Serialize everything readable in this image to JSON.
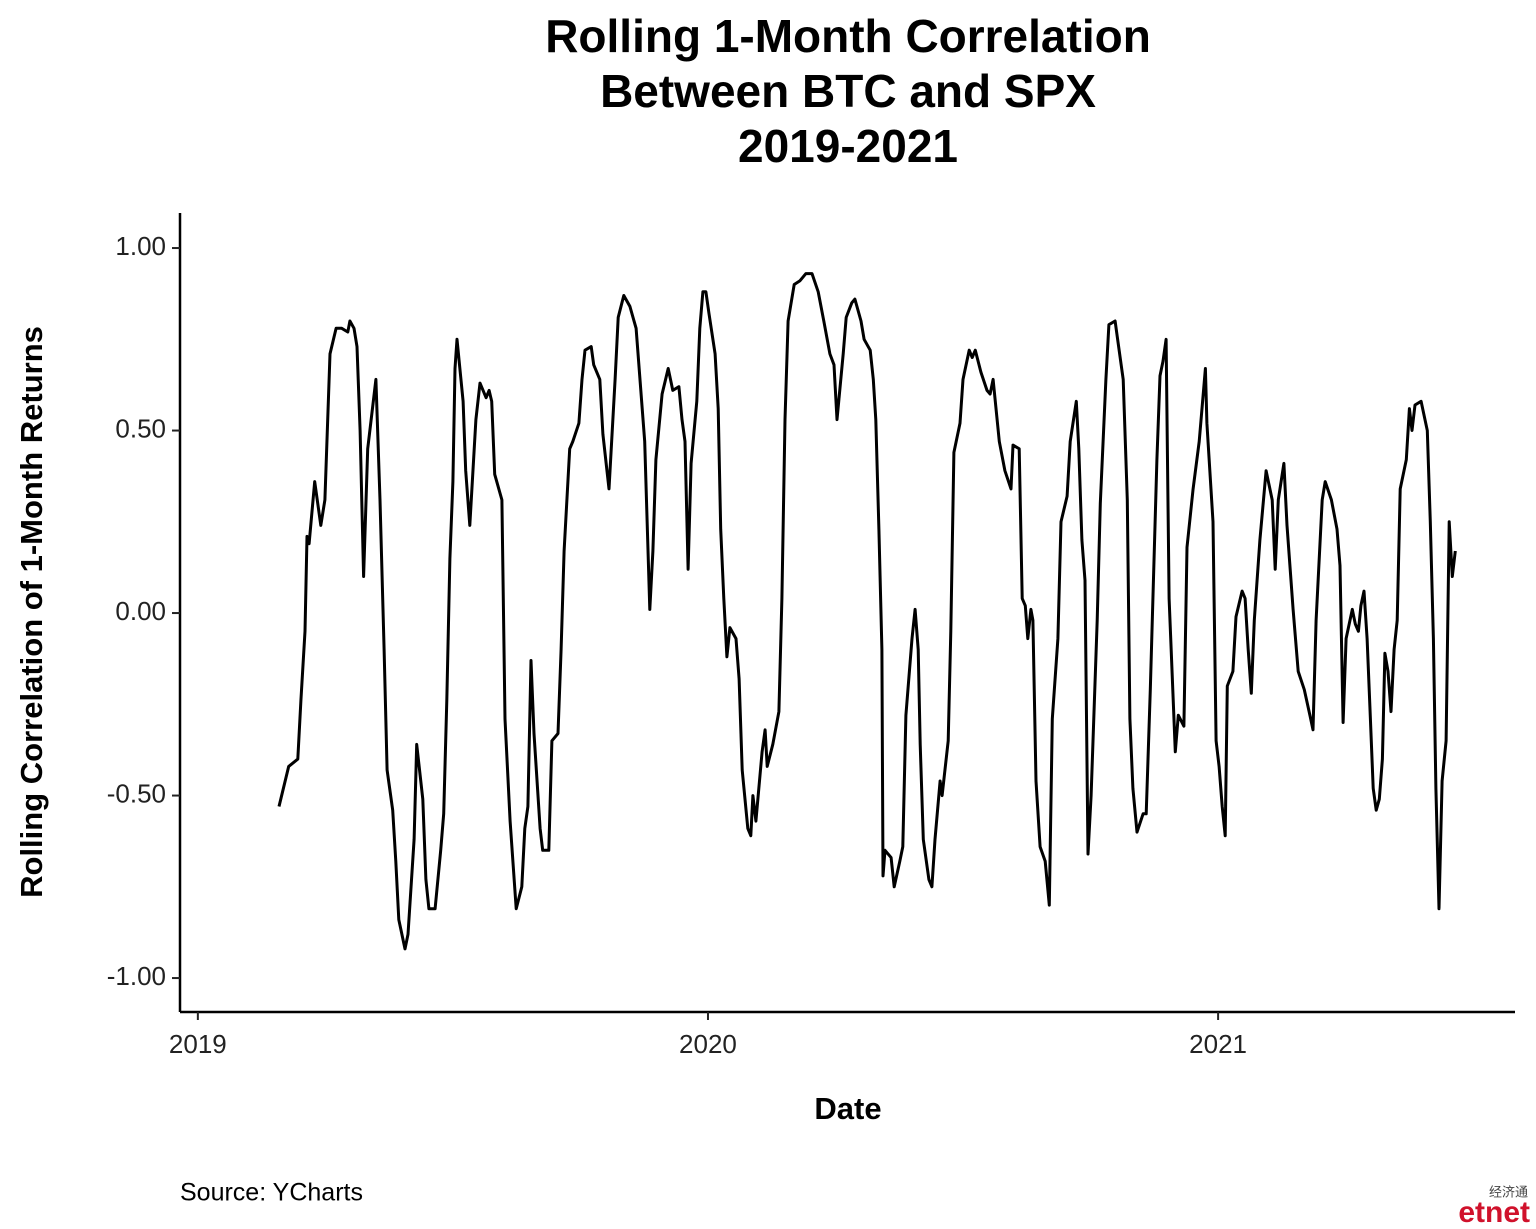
{
  "chart_data": {
    "type": "line",
    "title": [
      "Rolling 1-Month Correlation",
      "Between BTC and SPX",
      "2019-2021"
    ],
    "x_label": "Date",
    "y_label": "Rolling Correlation of 1-Month Returns",
    "source": "Source:  YCharts",
    "watermark": [
      "经济通",
      "etnet"
    ],
    "xlim": [
      2018.965,
      2021.582
    ],
    "xticks": [
      2019,
      2020,
      2021
    ],
    "ylim": [
      -1.093,
      1.096
    ],
    "yticks": [
      {
        "value": 1,
        "label": "1.00"
      },
      {
        "value": 0.5,
        "label": "0.50"
      },
      {
        "value": 0,
        "label": "0.00"
      },
      {
        "value": -0.5,
        "label": "-0.50"
      },
      {
        "value": -1,
        "label": "-1.00"
      }
    ],
    "grid": false,
    "series": [
      {
        "color": "#000000",
        "x": [
          2019.159,
          2019.178,
          2019.196,
          2019.202,
          2019.21,
          2019.214,
          2019.218,
          2019.229,
          2019.241,
          2019.249,
          2019.259,
          2019.271,
          2019.282,
          2019.294,
          2019.298,
          2019.306,
          2019.312,
          2019.318,
          2019.325,
          2019.333,
          2019.349,
          2019.357,
          2019.365,
          2019.371,
          2019.382,
          2019.388,
          2019.394,
          2019.406,
          2019.412,
          2019.424,
          2019.429,
          2019.441,
          2019.447,
          2019.453,
          2019.465,
          2019.476,
          2019.482,
          2019.488,
          2019.494,
          2019.5,
          2019.504,
          2019.508,
          2019.52,
          2019.525,
          2019.533,
          2019.545,
          2019.553,
          2019.565,
          2019.571,
          2019.576,
          2019.582,
          2019.596,
          2019.602,
          2019.612,
          2019.624,
          2019.635,
          2019.641,
          2019.647,
          2019.653,
          2019.659,
          2019.671,
          2019.676,
          2019.688,
          2019.694,
          2019.706,
          2019.712,
          2019.718,
          2019.729,
          2019.735,
          2019.747,
          2019.753,
          2019.759,
          2019.771,
          2019.776,
          2019.788,
          2019.794,
          2019.806,
          2019.818,
          2019.824,
          2019.835,
          2019.847,
          2019.859,
          2019.871,
          2019.876,
          2019.886,
          2019.892,
          2019.898,
          2019.91,
          2019.922,
          2019.931,
          2019.943,
          2019.949,
          2019.955,
          2019.961,
          2019.967,
          2019.978,
          2019.984,
          2019.99,
          2019.996,
          2020.002,
          2020.014,
          2020.02,
          2020.025,
          2020.031,
          2020.037,
          2020.043,
          2020.055,
          2020.061,
          2020.067,
          2020.078,
          2020.084,
          2020.088,
          2020.094,
          2020.106,
          2020.112,
          2020.116,
          2020.127,
          2020.139,
          2020.145,
          2020.151,
          2020.157,
          2020.169,
          2020.18,
          2020.192,
          2020.204,
          2020.216,
          2020.227,
          2020.239,
          2020.247,
          2020.253,
          2020.265,
          2020.271,
          2020.282,
          2020.288,
          2020.3,
          2020.306,
          2020.318,
          2020.324,
          2020.329,
          2020.335,
          2020.341,
          2020.343,
          2020.347,
          2020.359,
          2020.365,
          2020.376,
          2020.382,
          2020.388,
          2020.4,
          2020.406,
          2020.412,
          2020.416,
          2020.422,
          2020.433,
          2020.439,
          2020.445,
          2020.455,
          2020.459,
          2020.471,
          2020.476,
          2020.482,
          2020.494,
          2020.5,
          2020.512,
          2020.518,
          2020.524,
          2020.535,
          2020.547,
          2020.553,
          2020.559,
          2020.571,
          2020.582,
          2020.594,
          2020.598,
          2020.61,
          2020.616,
          2020.622,
          2020.627,
          2020.633,
          2020.637,
          2020.643,
          2020.651,
          2020.661,
          2020.669,
          2020.675,
          2020.686,
          2020.692,
          2020.704,
          2020.71,
          2020.722,
          2020.727,
          2020.733,
          2020.739,
          2020.745,
          2020.751,
          2020.763,
          2020.769,
          2020.78,
          2020.786,
          2020.798,
          2020.802,
          2020.814,
          2020.822,
          2020.827,
          2020.833,
          2020.841,
          2020.853,
          2020.859,
          2020.867,
          2020.88,
          2020.886,
          2020.892,
          2020.898,
          2020.904,
          2020.916,
          2020.922,
          2020.933,
          2020.939,
          2020.951,
          2020.963,
          2020.975,
          2020.978,
          2020.99,
          2020.996,
          2021.002,
          2021.008,
          2021.014,
          2021.018,
          2021.029,
          2021.035,
          2021.047,
          2021.053,
          2021.059,
          2021.065,
          2021.071,
          2021.082,
          2021.094,
          2021.106,
          2021.112,
          2021.118,
          2021.129,
          2021.135,
          2021.147,
          2021.157,
          2021.169,
          2021.18,
          2021.186,
          2021.192,
          2021.204,
          2021.21,
          2021.222,
          2021.233,
          2021.239,
          2021.245,
          2021.251,
          2021.263,
          2021.269,
          2021.275,
          2021.28,
          2021.286,
          2021.292,
          2021.298,
          2021.304,
          2021.31,
          2021.316,
          2021.322,
          2021.327,
          2021.333,
          2021.339,
          2021.345,
          2021.351,
          2021.357,
          2021.369,
          2021.375,
          2021.38,
          2021.386,
          2021.398,
          2021.404,
          2021.41,
          2021.416,
          2021.422,
          2021.427,
          2021.433,
          2021.439,
          2021.447,
          2021.453,
          2021.459,
          2021.465
        ],
        "values": [
          -0.53,
          -0.42,
          -0.4,
          -0.24,
          -0.05,
          0.21,
          0.19,
          0.36,
          0.24,
          0.31,
          0.71,
          0.78,
          0.78,
          0.77,
          0.8,
          0.78,
          0.73,
          0.5,
          0.1,
          0.45,
          0.64,
          0.31,
          -0.1,
          -0.43,
          -0.54,
          -0.68,
          -0.84,
          -0.92,
          -0.88,
          -0.62,
          -0.36,
          -0.51,
          -0.73,
          -0.81,
          -0.81,
          -0.65,
          -0.55,
          -0.24,
          0.15,
          0.36,
          0.67,
          0.75,
          0.58,
          0.39,
          0.24,
          0.53,
          0.63,
          0.59,
          0.61,
          0.58,
          0.38,
          0.31,
          -0.29,
          -0.57,
          -0.81,
          -0.75,
          -0.59,
          -0.53,
          -0.13,
          -0.33,
          -0.59,
          -0.65,
          -0.65,
          -0.35,
          -0.33,
          -0.1,
          0.17,
          0.45,
          0.47,
          0.52,
          0.64,
          0.72,
          0.73,
          0.68,
          0.64,
          0.49,
          0.34,
          0.64,
          0.81,
          0.87,
          0.84,
          0.78,
          0.56,
          0.47,
          0.01,
          0.17,
          0.42,
          0.6,
          0.67,
          0.61,
          0.62,
          0.53,
          0.47,
          0.12,
          0.41,
          0.58,
          0.78,
          0.88,
          0.88,
          0.82,
          0.71,
          0.56,
          0.23,
          0.04,
          -0.12,
          -0.04,
          -0.07,
          -0.18,
          -0.43,
          -0.59,
          -0.61,
          -0.5,
          -0.57,
          -0.38,
          -0.32,
          -0.42,
          -0.36,
          -0.27,
          0.04,
          0.53,
          0.8,
          0.9,
          0.91,
          0.93,
          0.93,
          0.88,
          0.8,
          0.71,
          0.68,
          0.53,
          0.71,
          0.81,
          0.85,
          0.86,
          0.8,
          0.75,
          0.72,
          0.64,
          0.53,
          0.23,
          -0.1,
          -0.72,
          -0.65,
          -0.67,
          -0.75,
          -0.68,
          -0.64,
          -0.28,
          -0.07,
          0.01,
          -0.1,
          -0.36,
          -0.62,
          -0.73,
          -0.75,
          -0.62,
          -0.46,
          -0.5,
          -0.35,
          -0.05,
          0.44,
          0.52,
          0.64,
          0.72,
          0.7,
          0.72,
          0.66,
          0.61,
          0.6,
          0.64,
          0.47,
          0.39,
          0.34,
          0.46,
          0.45,
          0.04,
          0.02,
          -0.07,
          0.01,
          -0.02,
          -0.46,
          -0.64,
          -0.68,
          -0.8,
          -0.29,
          -0.07,
          0.25,
          0.32,
          0.47,
          0.58,
          0.45,
          0.2,
          0.09,
          -0.66,
          -0.5,
          -0.02,
          0.3,
          0.64,
          0.79,
          0.8,
          0.76,
          0.64,
          0.31,
          -0.29,
          -0.48,
          -0.6,
          -0.55,
          -0.55,
          -0.21,
          0.42,
          0.65,
          0.69,
          0.75,
          0.04,
          -0.38,
          -0.28,
          -0.31,
          0.18,
          0.34,
          0.47,
          0.67,
          0.52,
          0.25,
          -0.35,
          -0.42,
          -0.53,
          -0.61,
          -0.2,
          -0.16,
          -0.01,
          0.06,
          0.04,
          -0.1,
          -0.22,
          -0.02,
          0.2,
          0.39,
          0.31,
          0.12,
          0.31,
          0.41,
          0.24,
          0.01,
          -0.16,
          -0.21,
          -0.28,
          -0.32,
          -0.02,
          0.31,
          0.36,
          0.31,
          0.23,
          0.13,
          -0.3,
          -0.07,
          0.01,
          -0.03,
          -0.05,
          0.02,
          0.06,
          -0.07,
          -0.27,
          -0.48,
          -0.54,
          -0.51,
          -0.4,
          -0.11,
          -0.16,
          -0.27,
          -0.1,
          -0.02,
          0.34,
          0.42,
          0.56,
          0.5,
          0.57,
          0.58,
          0.54,
          0.5,
          0.25,
          -0.07,
          -0.48,
          -0.81,
          -0.46,
          -0.35,
          0.25,
          0.1,
          0.17
        ]
      }
    ]
  }
}
